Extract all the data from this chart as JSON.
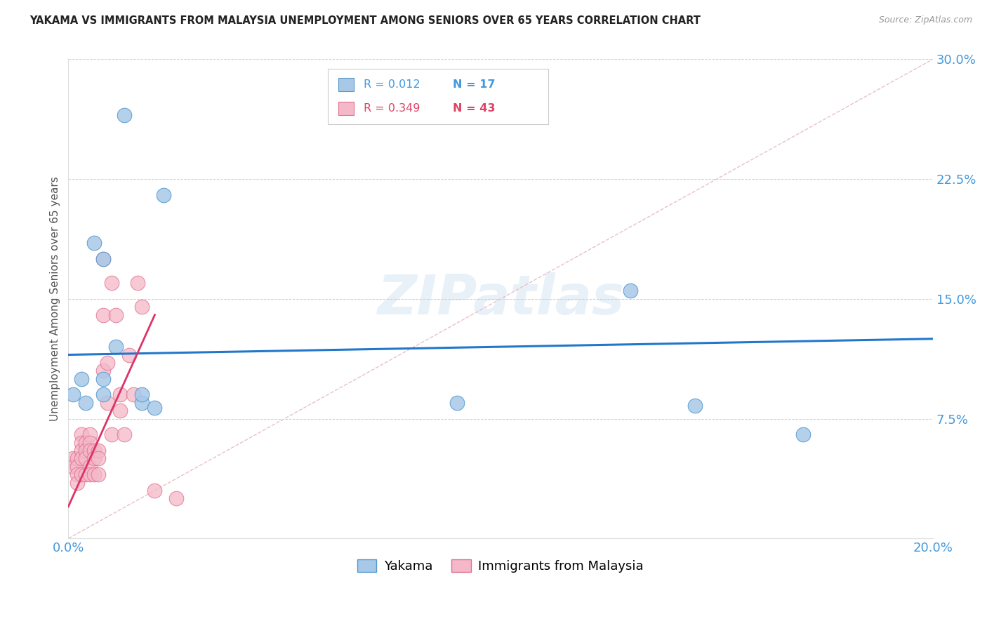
{
  "title": "YAKAMA VS IMMIGRANTS FROM MALAYSIA UNEMPLOYMENT AMONG SENIORS OVER 65 YEARS CORRELATION CHART",
  "source": "Source: ZipAtlas.com",
  "ylabel": "Unemployment Among Seniors over 65 years",
  "xlim": [
    0.0,
    0.2
  ],
  "ylim": [
    0.0,
    0.3
  ],
  "yticks": [
    0.0,
    0.075,
    0.15,
    0.225,
    0.3
  ],
  "ytick_labels": [
    "",
    "7.5%",
    "15.0%",
    "22.5%",
    "30.0%"
  ],
  "xticks": [
    0.0,
    0.05,
    0.1,
    0.15,
    0.2
  ],
  "xtick_labels": [
    "0.0%",
    "",
    "",
    "",
    "20.0%"
  ],
  "yakama_x": [
    0.013,
    0.022,
    0.001,
    0.003,
    0.004,
    0.006,
    0.008,
    0.008,
    0.008,
    0.011,
    0.017,
    0.017,
    0.02,
    0.09,
    0.13,
    0.145,
    0.17
  ],
  "yakama_y": [
    0.265,
    0.215,
    0.09,
    0.1,
    0.085,
    0.185,
    0.175,
    0.1,
    0.09,
    0.12,
    0.085,
    0.09,
    0.082,
    0.085,
    0.155,
    0.083,
    0.065
  ],
  "malaysia_x": [
    0.001,
    0.001,
    0.002,
    0.002,
    0.002,
    0.002,
    0.003,
    0.003,
    0.003,
    0.003,
    0.003,
    0.004,
    0.004,
    0.004,
    0.004,
    0.005,
    0.005,
    0.005,
    0.005,
    0.005,
    0.006,
    0.006,
    0.006,
    0.007,
    0.007,
    0.007,
    0.008,
    0.008,
    0.008,
    0.009,
    0.009,
    0.01,
    0.01,
    0.011,
    0.012,
    0.012,
    0.013,
    0.014,
    0.015,
    0.016,
    0.017,
    0.02,
    0.025
  ],
  "malaysia_y": [
    0.05,
    0.045,
    0.05,
    0.045,
    0.04,
    0.035,
    0.065,
    0.06,
    0.055,
    0.05,
    0.04,
    0.06,
    0.055,
    0.05,
    0.04,
    0.065,
    0.06,
    0.055,
    0.045,
    0.04,
    0.055,
    0.05,
    0.04,
    0.055,
    0.05,
    0.04,
    0.175,
    0.14,
    0.105,
    0.11,
    0.085,
    0.16,
    0.065,
    0.14,
    0.09,
    0.08,
    0.065,
    0.115,
    0.09,
    0.16,
    0.145,
    0.03,
    0.025
  ],
  "yakama_color": "#a8c8e8",
  "yakama_edge_color": "#5599cc",
  "malaysia_color": "#f4b8c8",
  "malaysia_edge_color": "#e07090",
  "trend_yakama_color": "#2277cc",
  "trend_malaysia_color": "#dd3366",
  "diagonal_color": "#dddddd",
  "diagonal_style": "--",
  "watermark": "ZIPatlas",
  "legend_r_yakama": "0.012",
  "legend_n_yakama": "17",
  "legend_r_malaysia": "0.349",
  "legend_n_malaysia": "43",
  "tick_color": "#4499dd",
  "grid_color": "#cccccc",
  "trend_yakama_start_y": 0.115,
  "trend_yakama_end_y": 0.125,
  "trend_malaysia_start_y": 0.02,
  "trend_malaysia_end_y": 0.14
}
